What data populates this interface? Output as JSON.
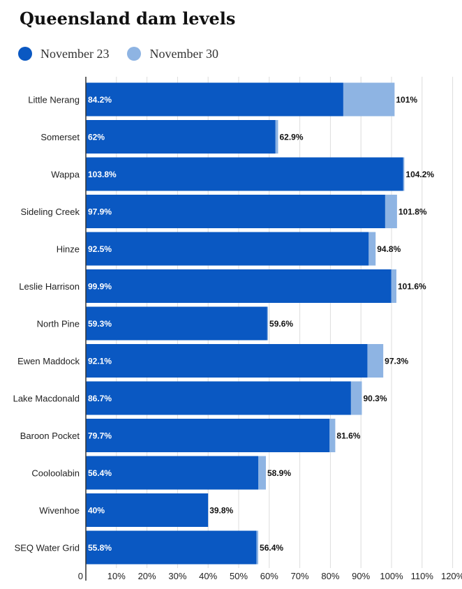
{
  "chart_data": {
    "type": "bar",
    "orientation": "horizontal",
    "title": "Queensland dam levels",
    "categories": [
      "Little Nerang",
      "Somerset",
      "Wappa",
      "Sideling Creek",
      "Hinze",
      "Leslie Harrison",
      "North Pine",
      "Ewen Maddock",
      "Lake Macdonald",
      "Baroon Pocket",
      "Cooloolabin",
      "Wivenhoe",
      "SEQ Water Grid"
    ],
    "series": [
      {
        "name": "November 23",
        "values": [
          84.2,
          62,
          103.8,
          97.9,
          92.5,
          99.9,
          59.3,
          92.1,
          86.7,
          79.7,
          56.4,
          40,
          55.8
        ],
        "labels": [
          "84.2%",
          "62%",
          "103.8%",
          "97.9%",
          "92.5%",
          "99.9%",
          "59.3%",
          "92.1%",
          "86.7%",
          "79.7%",
          "56.4%",
          "40%",
          "55.8%"
        ],
        "color": "#0a58c2"
      },
      {
        "name": "November 30",
        "values": [
          101,
          62.9,
          104.2,
          101.8,
          94.8,
          101.6,
          59.6,
          97.3,
          90.3,
          81.6,
          58.9,
          39.8,
          56.4
        ],
        "labels": [
          "101%",
          "62.9%",
          "104.2%",
          "101.8%",
          "94.8%",
          "101.6%",
          "59.6%",
          "97.3%",
          "90.3%",
          "81.6%",
          "58.9%",
          "39.8%",
          "56.4%"
        ],
        "color": "#8eb4e3"
      }
    ],
    "xlim": [
      0,
      120
    ],
    "x_ticks": [
      0,
      10,
      20,
      30,
      40,
      50,
      60,
      70,
      80,
      90,
      100,
      110,
      120
    ],
    "x_tick_labels": [
      "0",
      "10%",
      "20%",
      "30%",
      "40%",
      "50%",
      "60%",
      "70%",
      "80%",
      "90%",
      "100%",
      "110%",
      "120%"
    ],
    "grid": true,
    "legend_position": "top-left"
  }
}
